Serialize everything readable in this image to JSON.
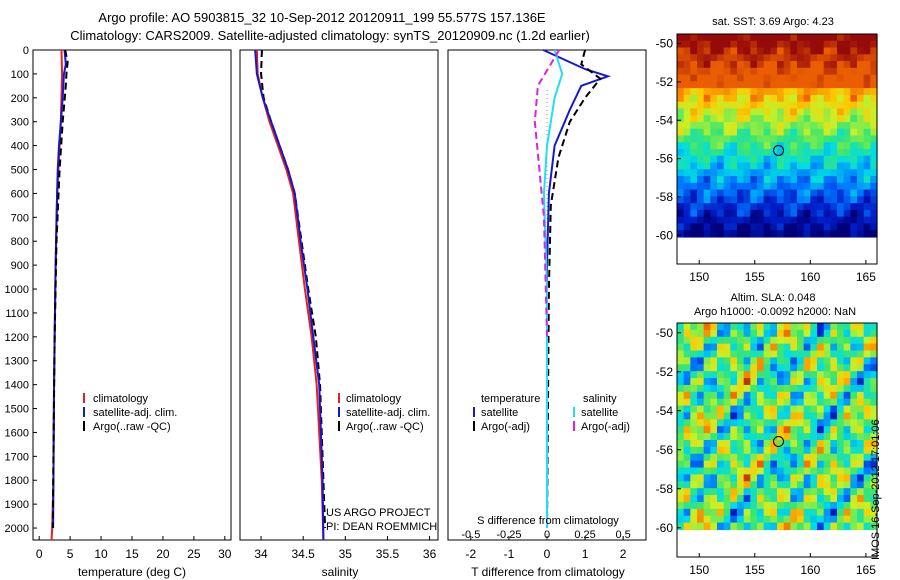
{
  "header": {
    "line1": "Argo profile: AO 5903815_32 10-Sep-2012 20120911_199 55.577S 157.136E",
    "line2": "Climatology: CARS2009. Satellite-adjusted climatology: synTS_20120909.nc (1.2d earlier)"
  },
  "colors": {
    "climatology": "#e8211d",
    "satellite": "#1717d0",
    "argo": "#000000",
    "satellite_s": "#1fe0f0",
    "argo_s": "#e01fe0"
  },
  "panel_temp": {
    "xlabel": "temperature (deg C)",
    "legend": [
      "climatology",
      "satellite-adj. clim.",
      "Argo(..raw -QC)"
    ]
  },
  "panel_sal": {
    "xlabel": "salinity",
    "legend": [
      "climatology",
      "satellite-adj. clim.",
      "Argo(..raw -QC)"
    ],
    "credit1": "US ARGO PROJECT",
    "credit2": "PI: DEAN ROEMMICH"
  },
  "panel_diff": {
    "top_label": "S difference from climatology",
    "xlabel": "T difference from climatology",
    "legend_t_title": "temperature",
    "legend_s_title": "salinity",
    "legend_t": [
      "satellite",
      "Argo(-adj)"
    ],
    "legend_s": [
      "satellite",
      "Argo(-adj)"
    ]
  },
  "map_sst": {
    "title": "sat. SST: 3.69 Argo: 4.23"
  },
  "map_sla": {
    "title1": "Altim. SLA: 0.048",
    "title2": "Argo h1000: -0.0092 h2000: NaN"
  },
  "side_stamp": "IMOS 16-Sep-2012 17:01:06",
  "chart_data": [
    {
      "type": "line",
      "name": "temperature profile",
      "xlabel": "temperature (deg C)",
      "ylabel": "",
      "xlim": [
        -1,
        31
      ],
      "ylim": [
        2050,
        0
      ],
      "xticks": [
        0,
        5,
        10,
        15,
        20,
        25,
        30
      ],
      "yticks": [
        0,
        100,
        200,
        300,
        400,
        500,
        600,
        700,
        800,
        900,
        1000,
        1100,
        1200,
        1300,
        1400,
        1500,
        1600,
        1700,
        1800,
        1900,
        2000
      ],
      "series": [
        {
          "name": "climatology",
          "x": [
            3.6,
            3.7,
            3.6,
            3.5,
            3.3,
            3.1,
            2.9,
            2.75,
            2.6,
            2.5,
            2.4,
            2.35,
            2.3,
            2.2,
            2.1,
            2.0
          ],
          "y": [
            0,
            100,
            200,
            300,
            400,
            500,
            600,
            800,
            1000,
            1200,
            1400,
            1600,
            1800,
            1900,
            2000,
            2050
          ]
        },
        {
          "name": "satellite-adj. clim.",
          "x": [
            4.1,
            4.3,
            4.0,
            3.8,
            3.5,
            3.2,
            3.0,
            2.8,
            2.65,
            2.5,
            2.4,
            2.35,
            2.3,
            2.25
          ],
          "y": [
            0,
            60,
            100,
            200,
            300,
            400,
            500,
            700,
            900,
            1200,
            1400,
            1600,
            1800,
            2000
          ]
        },
        {
          "name": "Argo(..raw -QC)",
          "x": [
            4.2,
            4.6,
            4.4,
            4.3,
            3.8,
            3.3,
            2.8,
            2.5,
            2.3,
            2.2
          ],
          "y": [
            0,
            50,
            100,
            150,
            300,
            500,
            800,
            1200,
            1700,
            2000
          ]
        }
      ]
    },
    {
      "type": "line",
      "name": "salinity profile",
      "xlabel": "salinity",
      "xlim": [
        33.75,
        36.1
      ],
      "ylim": [
        2050,
        0
      ],
      "xticks": [
        34,
        34.5,
        35,
        35.5,
        36
      ],
      "series": [
        {
          "name": "climatology",
          "x": [
            33.95,
            33.96,
            34.02,
            34.1,
            34.2,
            34.3,
            34.38,
            34.45,
            34.52,
            34.6,
            34.66,
            34.72,
            34.74
          ],
          "y": [
            0,
            100,
            200,
            300,
            400,
            500,
            600,
            800,
            1000,
            1200,
            1400,
            1800,
            2050
          ]
        },
        {
          "name": "satellite-adj. clim.",
          "x": [
            33.93,
            33.95,
            34.02,
            34.12,
            34.22,
            34.32,
            34.4,
            34.47,
            34.55,
            34.62,
            34.69,
            34.73,
            34.74
          ],
          "y": [
            0,
            100,
            200,
            300,
            400,
            500,
            600,
            800,
            1000,
            1200,
            1400,
            1800,
            2050
          ]
        },
        {
          "name": "Argo(..raw -QC)",
          "x": [
            34.01,
            34.0,
            34.03,
            34.12,
            34.22,
            34.32,
            34.4,
            34.48,
            34.56,
            34.65,
            34.7,
            34.74,
            34.76
          ],
          "y": [
            0,
            100,
            200,
            300,
            400,
            500,
            600,
            800,
            1000,
            1200,
            1400,
            1800,
            2000
          ]
        }
      ]
    },
    {
      "type": "line",
      "name": "difference from climatology",
      "xlabel": "T difference from climatology",
      "x2label": "S difference from climatology",
      "xlim": [
        -2.6,
        2.6
      ],
      "x2lim": [
        -0.65,
        0.65
      ],
      "ylim": [
        2050,
        0
      ],
      "xticks": [
        -2,
        -1,
        0,
        1,
        2
      ],
      "x2ticks": [
        -0.5,
        -0.25,
        0,
        0.25,
        0.5
      ],
      "series": [
        {
          "name": "temperature satellite",
          "axis": "T",
          "x": [
            -0.1,
            1.0,
            1.6,
            0.9,
            0.6,
            0.2,
            0.05,
            0.0,
            0.0,
            0.0
          ],
          "y": [
            0,
            80,
            110,
            150,
            250,
            400,
            600,
            900,
            1400,
            2000
          ]
        },
        {
          "name": "temperature Argo(-adj)",
          "axis": "T",
          "x": [
            1.0,
            0.9,
            1.4,
            1.0,
            0.6,
            0.3,
            0.1,
            0.05,
            0.0
          ],
          "y": [
            0,
            60,
            120,
            200,
            300,
            450,
            650,
            1000,
            2000
          ]
        },
        {
          "name": "salinity satellite",
          "axis": "S",
          "x": [
            0.05,
            0.1,
            0.05,
            0.0,
            -0.02,
            0.0,
            0.0
          ],
          "y": [
            0,
            100,
            200,
            400,
            600,
            1000,
            2000
          ]
        },
        {
          "name": "salinity Argo(-adj)",
          "axis": "S",
          "x": [
            0.08,
            -0.06,
            -0.08,
            -0.05,
            -0.02,
            0.0
          ],
          "y": [
            0,
            150,
            300,
            500,
            700,
            1200
          ]
        }
      ]
    },
    {
      "type": "heatmap",
      "name": "sat. SST map",
      "title": "sat. SST: 3.69 Argo: 4.23",
      "xlim": [
        148,
        166
      ],
      "ylim": [
        -61.5,
        -49.5
      ],
      "xticks": [
        150,
        155,
        160,
        165
      ],
      "yticks": [
        -50,
        -52,
        -54,
        -56,
        -58,
        -60
      ],
      "argo_position": [
        157.136,
        -55.577
      ]
    },
    {
      "type": "heatmap",
      "name": "Altim. SLA map",
      "title": "Altim. SLA: 0.048",
      "subtitle": "Argo h1000: -0.0092 h2000: NaN",
      "xlim": [
        148,
        166
      ],
      "ylim": [
        -61.5,
        -49.5
      ],
      "xticks": [
        150,
        155,
        160,
        165
      ],
      "yticks": [
        -50,
        -52,
        -54,
        -56,
        -58,
        -60
      ],
      "argo_position": [
        157.136,
        -55.577
      ]
    }
  ]
}
